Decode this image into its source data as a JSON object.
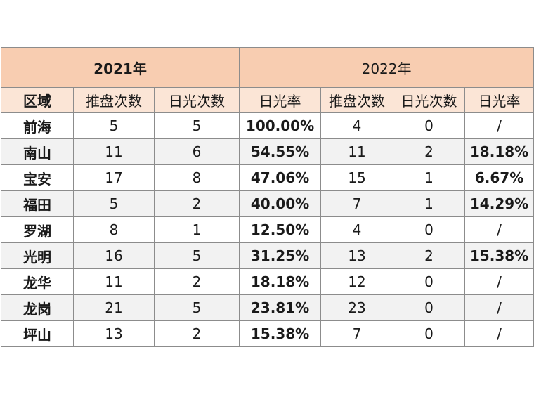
{
  "years": [
    "2021年",
    "2022年"
  ],
  "headers": [
    "区域",
    "推盘次数",
    "日光次数",
    "日光率",
    "推盘次数",
    "日光次数",
    "日光率"
  ],
  "rows": [
    [
      "前海",
      "5",
      "5",
      "100.00%",
      "4",
      "0",
      "/"
    ],
    [
      "南山",
      "11",
      "6",
      "54.55%",
      "11",
      "2",
      "18.18%"
    ],
    [
      "宝安",
      "17",
      "8",
      "47.06%",
      "15",
      "1",
      "6.67%"
    ],
    [
      "福田",
      "5",
      "2",
      "40.00%",
      "7",
      "1",
      "14.29%"
    ],
    [
      "罗湖",
      "8",
      "1",
      "12.50%",
      "4",
      "0",
      "/"
    ],
    [
      "光明",
      "16",
      "5",
      "31.25%",
      "13",
      "2",
      "15.38%"
    ],
    [
      "龙华",
      "11",
      "2",
      "18.18%",
      "12",
      "0",
      "/"
    ],
    [
      "龙岗",
      "21",
      "5",
      "23.81%",
      "23",
      "0",
      "/"
    ],
    [
      "坪山",
      "13",
      "2",
      "15.38%",
      "7",
      "0",
      "/"
    ]
  ],
  "colors": {
    "year_header_bg": "#f8cdb1",
    "column_header_bg": "#fbe5d6",
    "stripe_bg": "#f2f2f2",
    "percent_text": "#c55a11"
  }
}
